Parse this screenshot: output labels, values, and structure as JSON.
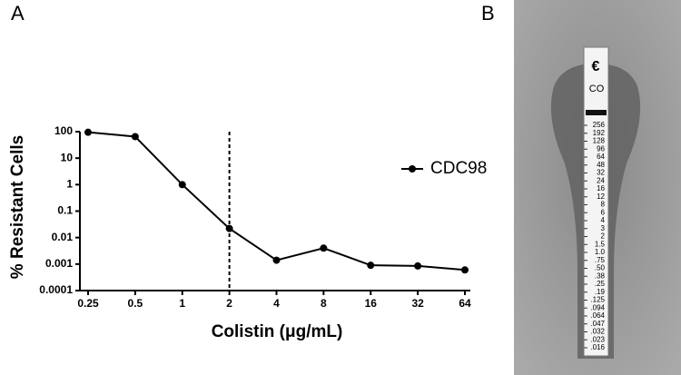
{
  "panel_labels": [
    "A",
    "B"
  ],
  "chart_data": {
    "type": "line",
    "xlabel": "Colistin (μg/mL)",
    "ylabel": "% Resistant Cells",
    "x": [
      0.25,
      0.5,
      1,
      2,
      4,
      8,
      16,
      32,
      64
    ],
    "series": [
      {
        "name": "CDC98",
        "color": "#000000",
        "values": [
          95,
          65,
          1,
          0.022,
          0.0014,
          0.004,
          0.0009,
          0.00085,
          0.0006
        ]
      }
    ],
    "xscale": "log2",
    "yscale": "log",
    "xlim": [
      0.25,
      64
    ],
    "xticks": [
      0.25,
      0.5,
      1,
      2,
      4,
      8,
      16,
      32,
      64
    ],
    "ylim": [
      0.0001,
      100
    ],
    "yticks": [
      0.0001,
      0.001,
      0.01,
      0.1,
      1,
      10,
      100
    ],
    "vline": 2,
    "legend": "right"
  },
  "strip": {
    "label": "CO",
    "scale": [
      "256",
      "192",
      "128",
      "96",
      "64",
      "48",
      "32",
      "24",
      "16",
      "12",
      "8",
      "6",
      "4",
      "3",
      "2",
      "1.5",
      "1.0",
      ".75",
      ".50",
      ".38",
      ".25",
      ".19",
      ".125",
      ".094",
      ".064",
      ".047",
      ".032",
      ".023",
      ".016"
    ]
  }
}
